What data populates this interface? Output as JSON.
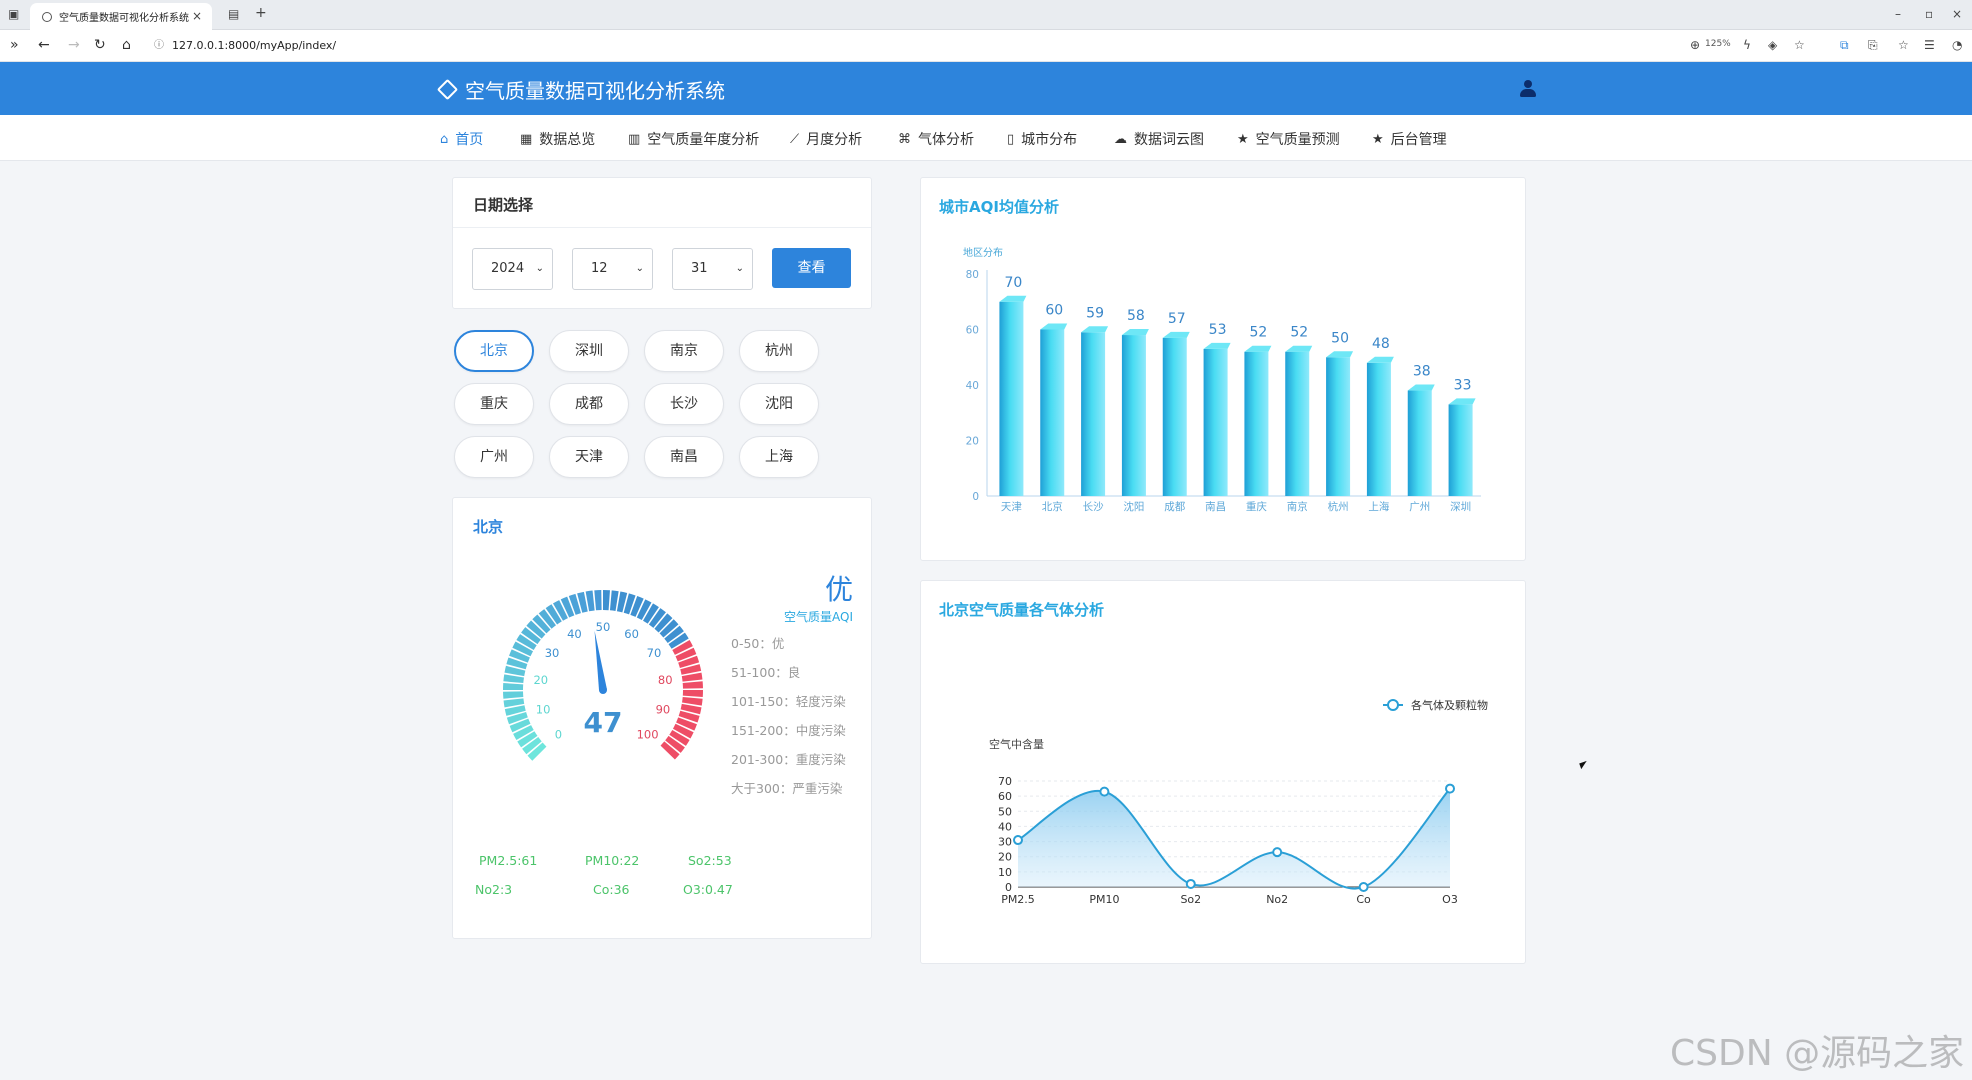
{
  "browser": {
    "tab_title": "空气质量数据可视化分析系统",
    "url": "127.0.0.1:8000/myApp/index/",
    "zoom": "125%"
  },
  "app": {
    "title": "空气质量数据可视化分析系统"
  },
  "nav": [
    {
      "label": "首页",
      "icon": "home-icon",
      "glyph": "⌂",
      "x": 440,
      "active": true
    },
    {
      "label": "数据总览",
      "icon": "table-icon",
      "glyph": "▦",
      "x": 520
    },
    {
      "label": "空气质量年度分析",
      "icon": "bar-chart-icon",
      "glyph": "▥",
      "x": 628
    },
    {
      "label": "月度分析",
      "icon": "line-chart-icon",
      "glyph": "⟋",
      "x": 790
    },
    {
      "label": "气体分析",
      "icon": "gas-icon",
      "glyph": "⌘",
      "x": 898
    },
    {
      "label": "城市分布",
      "icon": "map-icon",
      "glyph": "▯",
      "x": 1007
    },
    {
      "label": "数据词云图",
      "icon": "cloud-icon",
      "glyph": "☁",
      "x": 1114
    },
    {
      "label": "空气质量预测",
      "icon": "star-icon",
      "glyph": "★",
      "x": 1237
    },
    {
      "label": "后台管理",
      "icon": "star-icon",
      "glyph": "★",
      "x": 1372
    }
  ],
  "date": {
    "title": "日期选择",
    "year": "2024",
    "month": "12",
    "day": "31",
    "button": "查看"
  },
  "cities": [
    "北京",
    "深圳",
    "南京",
    "杭州",
    "重庆",
    "成都",
    "长沙",
    "沈阳",
    "广州",
    "天津",
    "南昌",
    "上海"
  ],
  "active_city": "北京",
  "detail": {
    "title": "北京",
    "quality_word": "优",
    "quality_label": "空气质量AQI",
    "aqi": 47,
    "gauge_min": 0,
    "gauge_max": 100,
    "gauge_ticks": [
      "0",
      "10",
      "20",
      "30",
      "40",
      "50",
      "60",
      "70",
      "80",
      "90",
      "100"
    ],
    "legend": [
      "0-50：优",
      "51-100：良",
      "101-150：轻度污染",
      "151-200：中度污染",
      "201-300：重度污染",
      "大于300：严重污染"
    ],
    "pollutants": [
      "PM2.5:61",
      "PM10:22",
      "So2:53",
      "No2:3",
      "Co:36",
      "O3:0.47"
    ]
  },
  "bar_chart": {
    "title": "城市AQI均值分析",
    "chart_data": {
      "type": "bar",
      "ylabel": "地区分布",
      "categories": [
        "天津",
        "北京",
        "长沙",
        "沈阳",
        "成都",
        "南昌",
        "重庆",
        "南京",
        "杭州",
        "上海",
        "广州",
        "深圳"
      ],
      "values": [
        70,
        60,
        59,
        58,
        57,
        53,
        52,
        52,
        50,
        48,
        38,
        33
      ],
      "ylim": [
        0,
        80
      ],
      "yticks": [
        "0",
        "20",
        "40",
        "60",
        "80"
      ]
    }
  },
  "line_chart": {
    "title": "北京空气质量各气体分析",
    "chart_data": {
      "type": "line",
      "ylabel": "空气中含量",
      "legend": "各气体及颗粒物",
      "categories": [
        "PM2.5",
        "PM10",
        "So2",
        "No2",
        "Co",
        "O3"
      ],
      "values": [
        31,
        63,
        2,
        23,
        0,
        65
      ],
      "ylim": [
        0,
        70
      ],
      "yticks": [
        "0",
        "10",
        "20",
        "30",
        "40",
        "50",
        "60",
        "70"
      ]
    }
  },
  "watermark": "CSDN @源码之家"
}
